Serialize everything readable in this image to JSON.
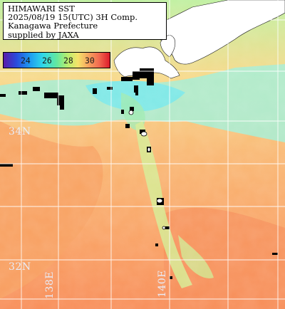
{
  "title": {
    "line1": "HIMAWARI SST",
    "line2": "2025/08/19 15(UTC) 3H Comp.",
    "line3": "Kanagawa Prefecture",
    "line4": "supplied by JAXA"
  },
  "colorbar": {
    "ticks": [
      "24",
      "26",
      "28",
      "30"
    ]
  },
  "grid_labels": {
    "lat_34": "34N",
    "lat_32": "32N",
    "lon_138": "138E",
    "lon_140": "140E"
  }
}
